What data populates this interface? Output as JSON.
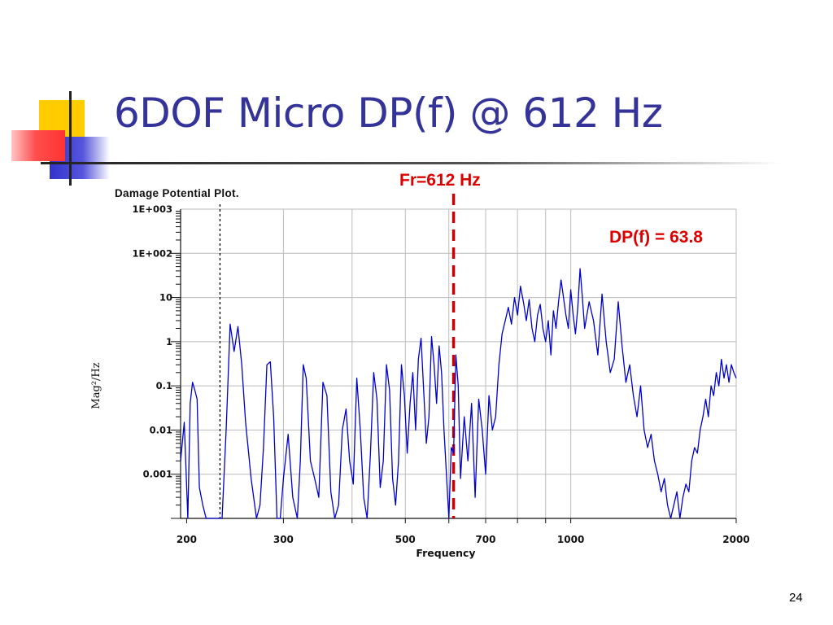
{
  "slide": {
    "title": "6DOF Micro DP(f) @ 612 Hz",
    "page_number": "24",
    "chart_heading": "Damage Potential Plot.",
    "frequency_marker_label": "Fr=612 Hz",
    "dp_value_label": "DP(f) = 63.8"
  },
  "colors": {
    "title": "#333399",
    "series": "#0000cc",
    "marker": "#cc0000",
    "annotation": "#dd0000",
    "grid": "#bbbbbb"
  },
  "chart_data": {
    "type": "line",
    "xscale": "log",
    "yscale": "log",
    "xlabel": "Frequency",
    "ylabel": "Mag²/Hz",
    "xlim": [
      195,
      2000
    ],
    "ylim": [
      0.0001,
      1000
    ],
    "x_tick_labels": [
      "200",
      "300",
      "500",
      "700",
      "1000",
      "2000"
    ],
    "x_tick_values": [
      200,
      300,
      500,
      700,
      1000,
      2000
    ],
    "y_tick_labels": [
      "1E+003",
      "1E+002",
      "10",
      "1",
      "0.1",
      "0.01",
      "0.001"
    ],
    "y_tick_values": [
      1000,
      100,
      10,
      1,
      0.1,
      0.01,
      0.001
    ],
    "grid": true,
    "reference_lines": [
      {
        "x": 612,
        "style": "dashed-thick",
        "color": "#cc0000"
      },
      {
        "x": 230,
        "style": "dotted",
        "color": "#000000"
      }
    ],
    "series": [
      {
        "x": [
          195,
          198,
          201,
          203,
          205,
          207,
          209,
          211,
          214,
          217,
          220,
          225,
          228,
          232,
          236,
          240,
          244,
          248,
          252,
          256,
          262,
          268,
          272,
          276,
          280,
          284,
          288,
          292,
          296,
          300,
          306,
          312,
          318,
          322,
          326,
          330,
          336,
          342,
          348,
          354,
          360,
          366,
          372,
          378,
          384,
          390,
          396,
          402,
          408,
          414,
          420,
          426,
          432,
          438,
          444,
          450,
          456,
          462,
          468,
          474,
          480,
          486,
          492,
          498,
          504,
          510,
          516,
          522,
          528,
          534,
          540,
          546,
          552,
          558,
          564,
          570,
          576,
          582,
          588,
          594,
          600,
          606,
          612,
          618,
          624,
          630,
          640,
          650,
          660,
          670,
          680,
          690,
          700,
          710,
          720,
          730,
          740,
          750,
          760,
          770,
          780,
          790,
          800,
          810,
          820,
          830,
          840,
          850,
          860,
          870,
          880,
          890,
          900,
          910,
          920,
          930,
          940,
          950,
          960,
          970,
          980,
          990,
          1000,
          1010,
          1020,
          1030,
          1040,
          1050,
          1060,
          1080,
          1100,
          1120,
          1140,
          1160,
          1180,
          1200,
          1220,
          1240,
          1260,
          1280,
          1300,
          1320,
          1340,
          1360,
          1380,
          1400,
          1420,
          1440,
          1460,
          1480,
          1500,
          1520,
          1540,
          1560,
          1580,
          1600,
          1620,
          1640,
          1660,
          1680,
          1700,
          1720,
          1740,
          1760,
          1780,
          1800,
          1820,
          1840,
          1860,
          1880,
          1900,
          1920,
          1940,
          1960,
          1980,
          2000
        ],
        "values": [
          0.002,
          0.015,
          0.0001,
          0.04,
          0.12,
          0.08,
          0.05,
          0.0005,
          0.0002,
          0.0001,
          0.0001,
          0.0001,
          0.0001,
          0.0001,
          0.01,
          2.5,
          0.6,
          2.2,
          0.3,
          0.015,
          0.0008,
          0.0001,
          0.0002,
          0.004,
          0.3,
          0.35,
          0.02,
          0.0001,
          0.0001,
          0.0008,
          0.008,
          0.0003,
          0.0001,
          0.002,
          0.3,
          0.15,
          0.002,
          0.0008,
          0.0003,
          0.12,
          0.06,
          0.0004,
          0.0001,
          0.0002,
          0.01,
          0.03,
          0.002,
          0.0006,
          0.15,
          0.01,
          0.0003,
          0.0001,
          0.003,
          0.2,
          0.05,
          0.0005,
          0.002,
          0.3,
          0.08,
          0.0008,
          0.0002,
          0.002,
          0.3,
          0.06,
          0.003,
          0.04,
          0.2,
          0.01,
          0.4,
          1.2,
          0.08,
          0.005,
          0.02,
          1.3,
          0.3,
          0.04,
          0.8,
          0.2,
          0.01,
          0.001,
          0.0001,
          0.004,
          0.003,
          0.5,
          0.1,
          0.0008,
          0.02,
          0.002,
          0.04,
          0.0003,
          0.05,
          0.01,
          0.001,
          0.06,
          0.01,
          0.02,
          0.3,
          1.5,
          3.0,
          6.0,
          2.5,
          10.0,
          4.0,
          18.0,
          8.0,
          3.0,
          9.0,
          2.0,
          1.0,
          4.0,
          7.0,
          2.0,
          1.0,
          3.0,
          0.5,
          5.0,
          2.0,
          8.0,
          25.0,
          10.0,
          4.0,
          2.0,
          15.0,
          4.0,
          1.5,
          6.0,
          45.0,
          10.0,
          2.0,
          8.0,
          3.0,
          0.5,
          12.0,
          1.0,
          0.2,
          0.4,
          8.0,
          0.8,
          0.12,
          0.3,
          0.06,
          0.02,
          0.1,
          0.01,
          0.004,
          0.008,
          0.002,
          0.001,
          0.0004,
          0.0008,
          0.0002,
          0.0001,
          0.0002,
          0.0004,
          0.0001,
          0.0003,
          0.0006,
          0.0004,
          0.002,
          0.004,
          0.003,
          0.01,
          0.02,
          0.05,
          0.02,
          0.1,
          0.06,
          0.2,
          0.1,
          0.4,
          0.15,
          0.3,
          0.12,
          0.3,
          0.2,
          0.15
        ]
      }
    ]
  }
}
